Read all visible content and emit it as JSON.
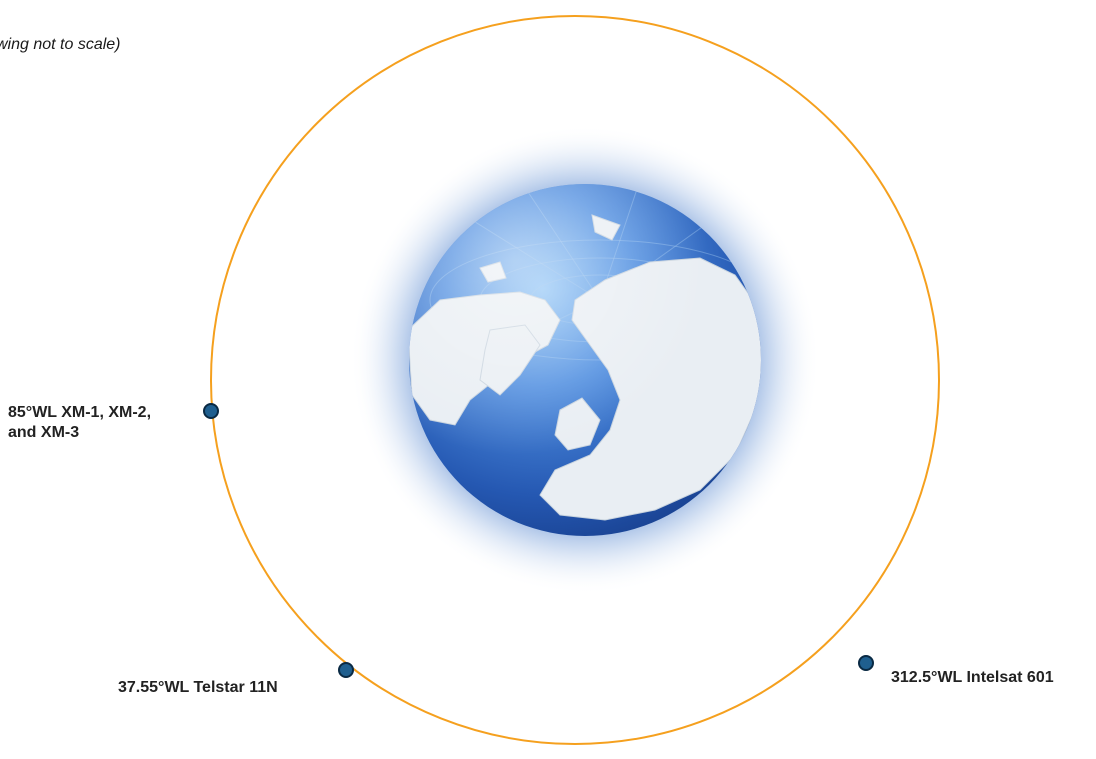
{
  "note": "wing not to scale)",
  "orbit_color": "#F5A01E",
  "satellite_color": "#1F5F8F",
  "satellites": [
    {
      "id": "xm",
      "lines": [
        "85°WL XM-1, XM-2,",
        "and XM-3"
      ]
    },
    {
      "id": "telstar",
      "lines": [
        "37.55°WL Telstar 11N"
      ]
    },
    {
      "id": "intelsat",
      "lines": [
        "312.5°WL Intelsat 601"
      ]
    }
  ]
}
